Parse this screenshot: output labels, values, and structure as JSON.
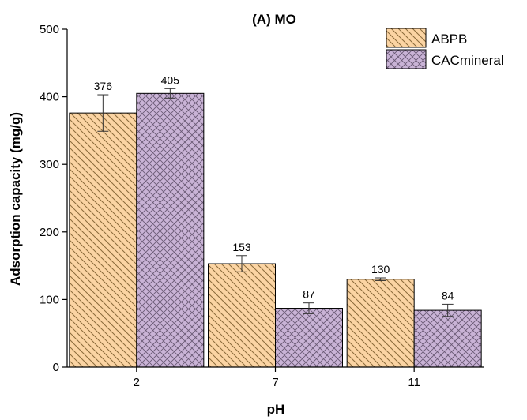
{
  "chart_data": {
    "type": "bar",
    "title": "(A) MO",
    "xlabel": "pH",
    "ylabel": "Adsorption capacity (mg/g)",
    "categories": [
      "2",
      "7",
      "11"
    ],
    "ylim": [
      0,
      500
    ],
    "yticks": [
      0,
      100,
      200,
      300,
      400,
      500
    ],
    "grid": false,
    "legend_position": "top-right",
    "series": [
      {
        "name": "ABPB",
        "values": [
          376,
          153,
          130
        ],
        "errors": [
          27,
          12,
          2
        ],
        "labels": [
          "376",
          "153",
          "130"
        ],
        "fill": "#fbd4a3",
        "hatch": "#8a6a3a",
        "pattern": "diagonal"
      },
      {
        "name": "CACmineral",
        "values": [
          405,
          87,
          84
        ],
        "errors": [
          7,
          8,
          9
        ],
        "labels": [
          "405",
          "87",
          "84"
        ],
        "fill": "#c9b3d6",
        "hatch": "#6a5a75",
        "pattern": "crosshatch"
      }
    ]
  }
}
